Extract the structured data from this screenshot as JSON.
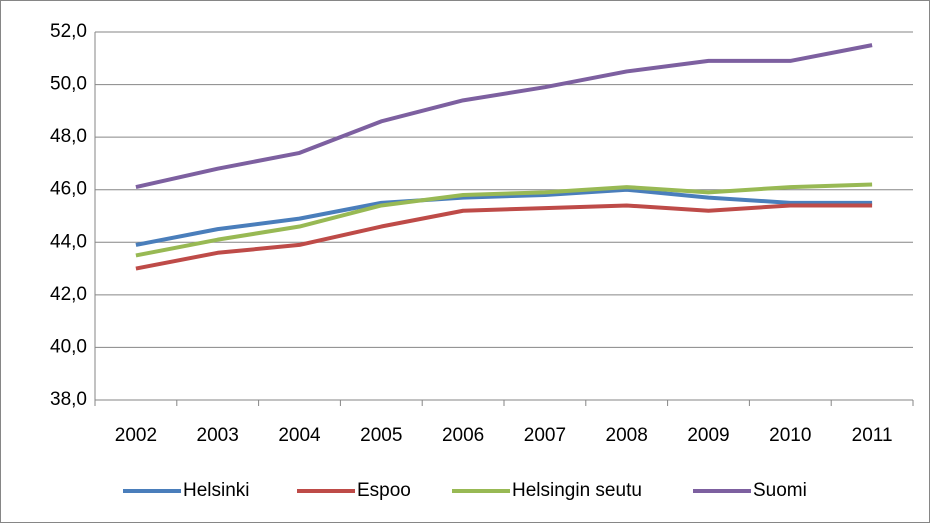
{
  "chart_data": {
    "type": "line",
    "categories": [
      "2002",
      "2003",
      "2004",
      "2005",
      "2006",
      "2007",
      "2008",
      "2009",
      "2010",
      "2011"
    ],
    "series": [
      {
        "name": "Helsinki",
        "color": "#4a7ebb",
        "values": [
          43.9,
          44.5,
          44.9,
          45.5,
          45.7,
          45.8,
          46.0,
          45.7,
          45.5,
          45.5
        ]
      },
      {
        "name": "Espoo",
        "color": "#be4b48",
        "values": [
          43.0,
          43.6,
          43.9,
          44.6,
          45.2,
          45.3,
          45.4,
          45.2,
          45.4,
          45.4
        ]
      },
      {
        "name": "Helsingin seutu",
        "color": "#98b954",
        "values": [
          43.5,
          44.1,
          44.6,
          45.4,
          45.8,
          45.9,
          46.1,
          45.9,
          46.1,
          46.2
        ]
      },
      {
        "name": "Suomi",
        "color": "#7d60a0",
        "values": [
          46.1,
          46.8,
          47.4,
          48.6,
          49.4,
          49.9,
          50.5,
          50.9,
          50.9,
          51.5
        ]
      }
    ],
    "ylim": [
      38,
      52
    ],
    "yticks": [
      {
        "value": 38,
        "label": "38,0"
      },
      {
        "value": 40,
        "label": "40,0"
      },
      {
        "value": 42,
        "label": "42,0"
      },
      {
        "value": 44,
        "label": "44,0"
      },
      {
        "value": 46,
        "label": "46,0"
      },
      {
        "value": 48,
        "label": "48,0"
      },
      {
        "value": 50,
        "label": "50,0"
      },
      {
        "value": 52,
        "label": "52,0"
      }
    ],
    "grid": true,
    "legend": "bottom"
  }
}
